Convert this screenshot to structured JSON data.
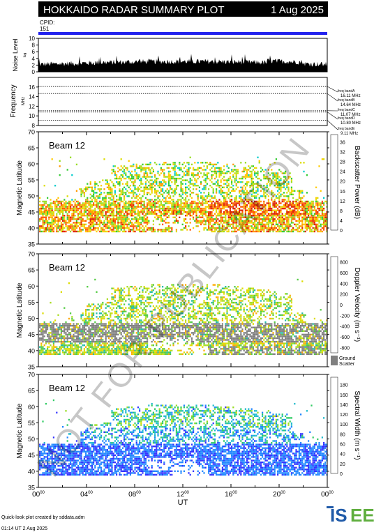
{
  "header": {
    "title": "HOKKAIDO RADAR SUMMARY PLOT",
    "date": "1 Aug 2025",
    "cpid_label": "CPID:",
    "cpid_value": "151"
  },
  "noise_panel": {
    "ylabel": "Noise Level",
    "ylabel_sub": "log",
    "ylim": [
      0,
      10
    ],
    "yticks": [
      "0",
      "2",
      "4",
      "6",
      "8",
      "10"
    ]
  },
  "freq_panel": {
    "ylabel": "Frequency",
    "ylabel_unit": "MHz",
    "ylim": [
      8,
      18
    ],
    "yticks": [
      "8",
      "10",
      "12",
      "14",
      "16"
    ],
    "bands": [
      {
        "label": "freq bandA",
        "value": "16.11 MHz",
        "freq": 16.11
      },
      {
        "label": "freq bandB",
        "value": "14.64 MHz",
        "freq": 14.64
      },
      {
        "label": "freq bandC",
        "value": "11.07 MHz",
        "freq": 11.07
      },
      {
        "label": "freq bandD",
        "value": "10.80 MHz",
        "freq": 10.8
      },
      {
        "label": "freq bandE",
        "value": "9.11 MHz",
        "freq": 9.11
      }
    ]
  },
  "panels": [
    {
      "beam": "Beam 12",
      "ylabel": "Magnetic Latitude",
      "ylim": [
        35,
        70
      ],
      "yticks": [
        "35",
        "40",
        "45",
        "50",
        "55",
        "60",
        "65",
        "70"
      ],
      "colorbar_label": "Backscatter Power (dB)",
      "colorbar_ticks": [
        "0",
        "4",
        "8",
        "12",
        "16",
        "20",
        "24",
        "28",
        "32",
        "36"
      ],
      "colorbar_range": [
        0,
        39
      ]
    },
    {
      "beam": "Beam 12",
      "ylabel": "Magnetic Latitude",
      "ylim": [
        35,
        70
      ],
      "yticks": [
        "35",
        "40",
        "45",
        "50",
        "55",
        "60",
        "65",
        "70"
      ],
      "colorbar_label": "Doppler Velocity (m s⁻¹)",
      "colorbar_ticks": [
        "-800",
        "-600",
        "-400",
        "-200",
        "0",
        "200",
        "400",
        "600",
        "800"
      ],
      "colorbar_range": [
        -900,
        900
      ],
      "ground_label": "Ground",
      "ground_label2": "Scatter"
    },
    {
      "beam": "Beam 12",
      "ylabel": "Magnetic Latitude",
      "ylim": [
        35,
        70
      ],
      "yticks": [
        "35",
        "40",
        "45",
        "50",
        "55",
        "60",
        "65",
        "70"
      ],
      "colorbar_label": "Spectral Width (m s⁻¹)",
      "colorbar_ticks": [
        "0",
        "20",
        "40",
        "60",
        "80",
        "100",
        "120",
        "140",
        "160",
        "180"
      ],
      "colorbar_range": [
        0,
        195
      ]
    }
  ],
  "xaxis": {
    "label": "UT",
    "ticks": [
      "00",
      "04",
      "08",
      "12",
      "16",
      "20",
      "00"
    ],
    "tick_sup": "00",
    "range_hours": [
      0,
      24
    ]
  },
  "watermark": "NOT FOR PUBLICATION",
  "footer": {
    "credit": "Quick-look plot created by sddata.adm",
    "timestamp": "01:14 UT  2 Aug 2025",
    "logo": "ISEE"
  },
  "colors": {
    "accent_bar": "#2222ee",
    "ground": "#808080"
  }
}
